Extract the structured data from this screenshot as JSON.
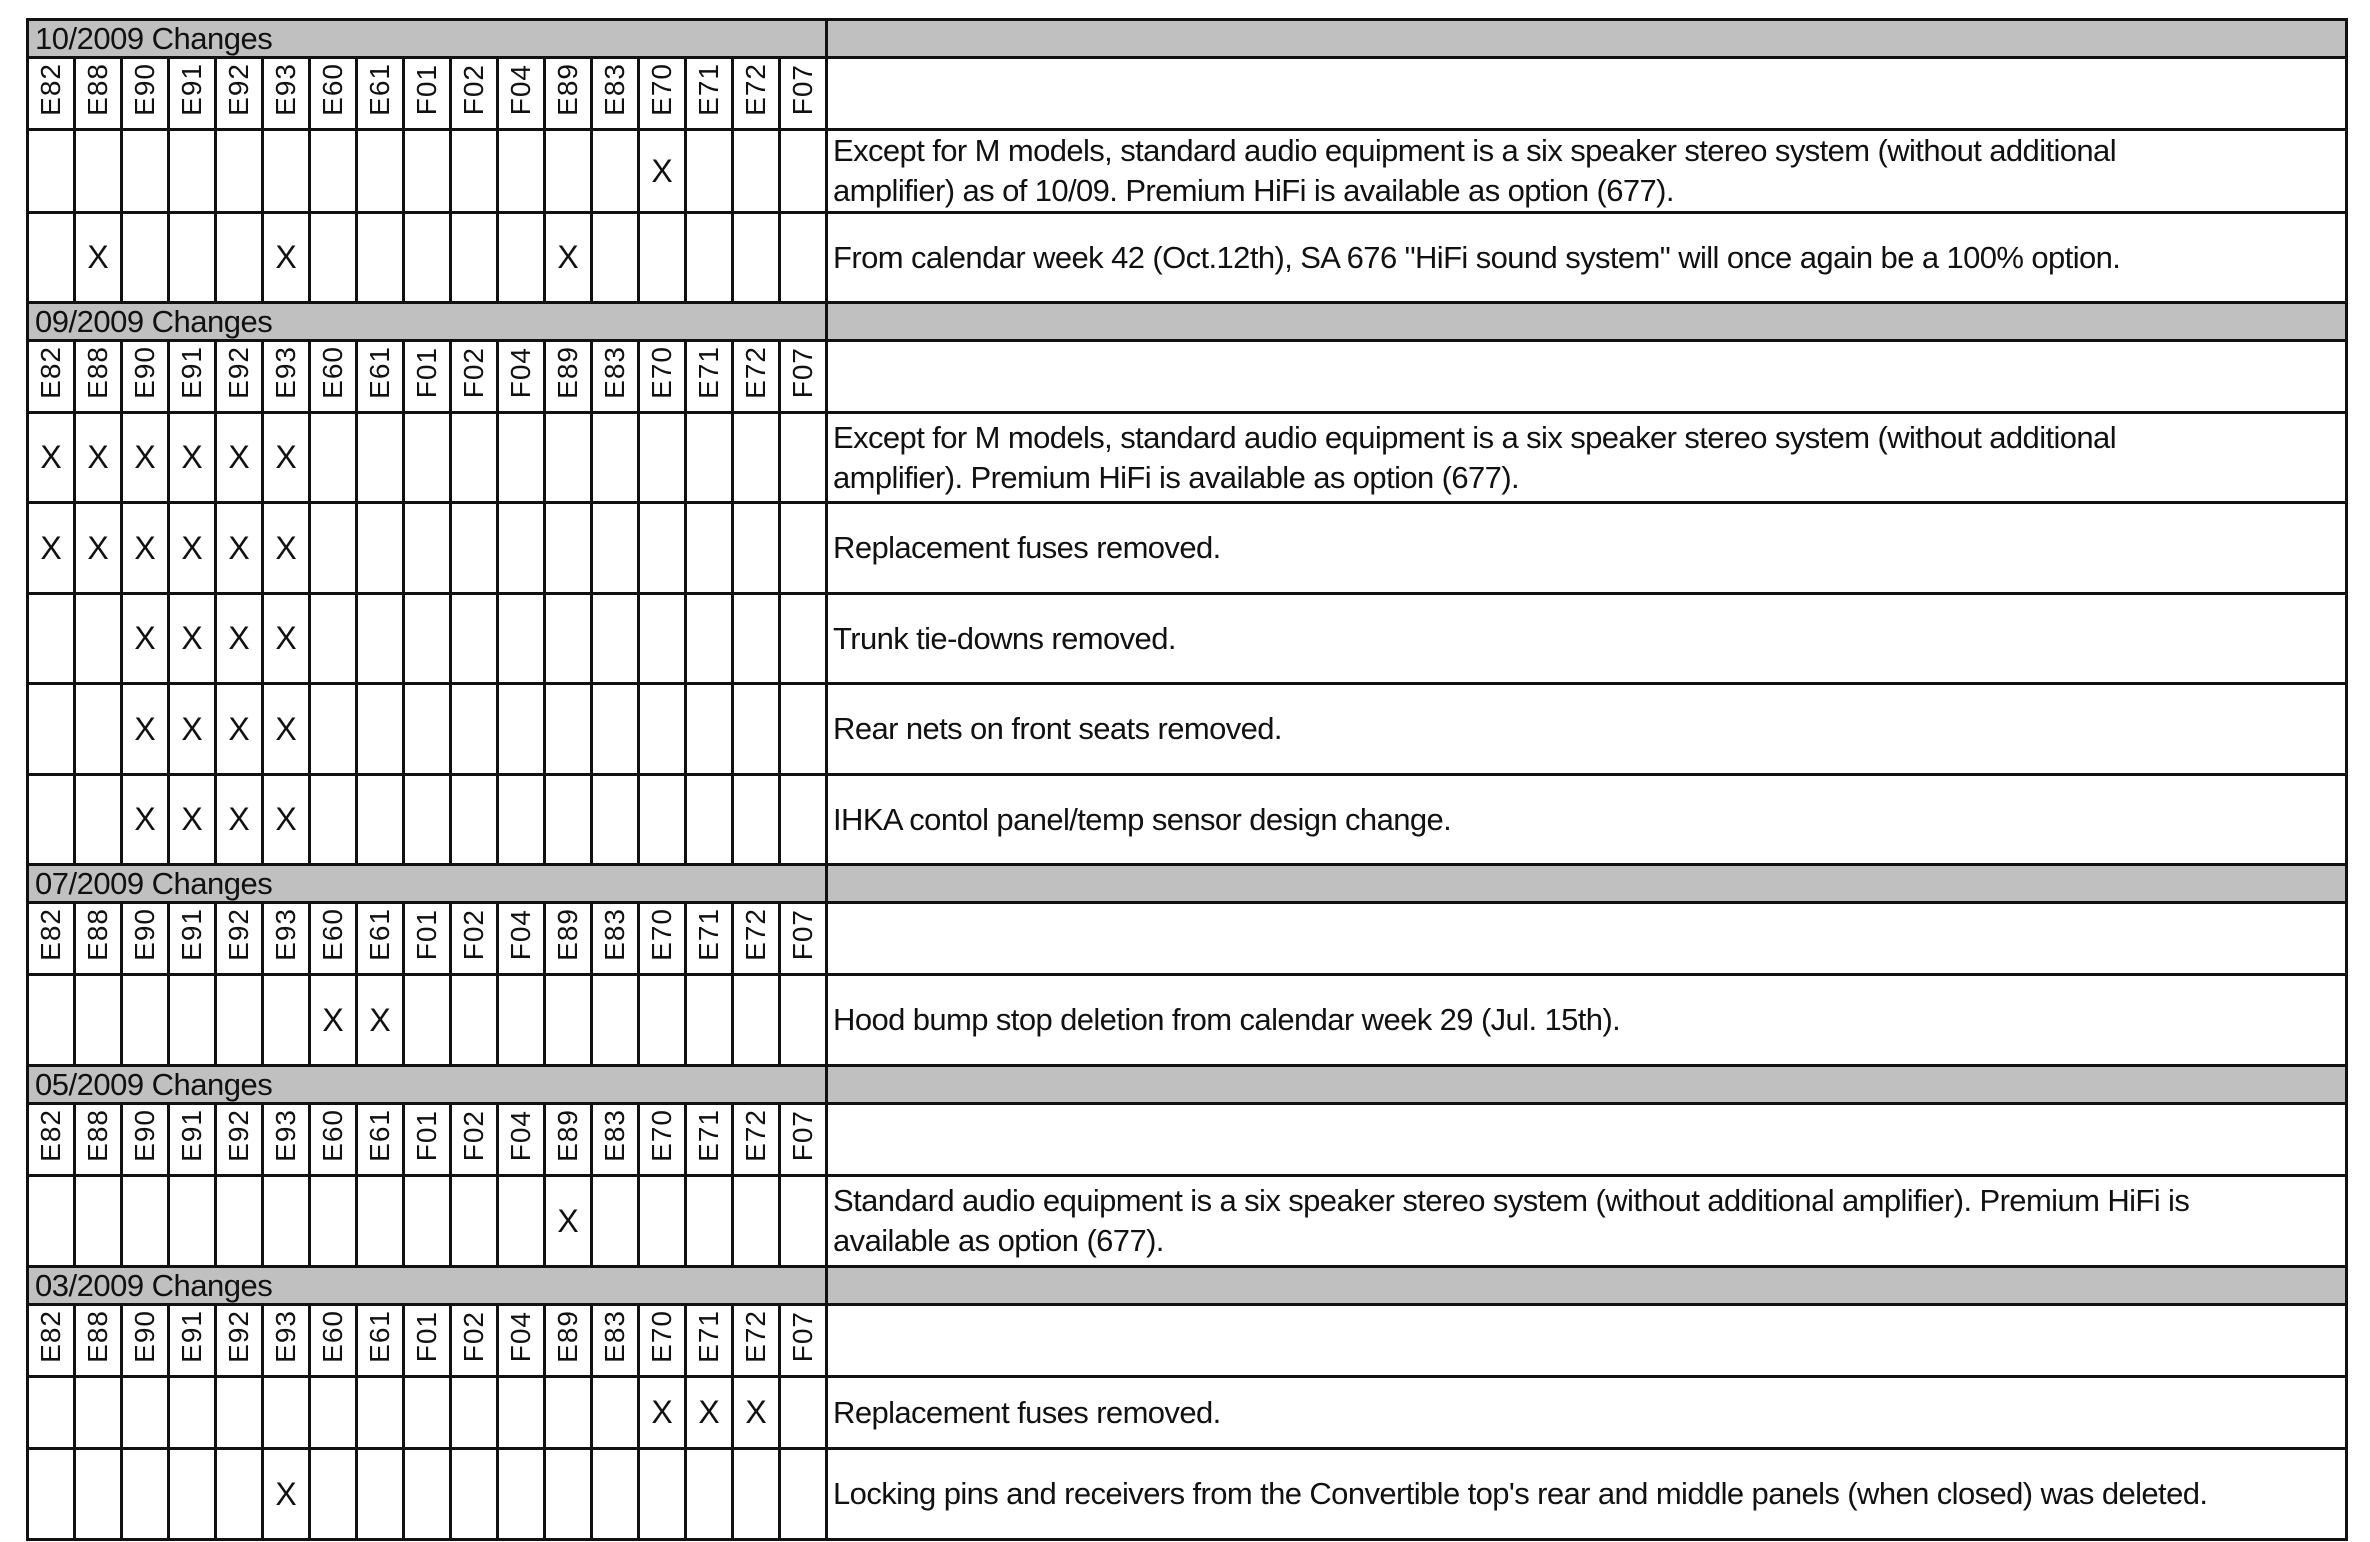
{
  "models": [
    "E82",
    "E88",
    "E90",
    "E91",
    "E92",
    "E93",
    "E60",
    "E61",
    "F01",
    "F02",
    "F04",
    "E89",
    "E83",
    "E70",
    "E71",
    "E72",
    "F07"
  ],
  "mark": "X",
  "sections": [
    {
      "title": "10/2009 Changes",
      "rows": [
        {
          "marks": [
            "E70"
          ],
          "text": "Except for M models, standard audio equipment is a six speaker stereo system (without additional\namplifier) as of 10/09.  Premium HiFi is available as option (677)."
        },
        {
          "marks": [
            "E88",
            "E93",
            "E89"
          ],
          "text": "From calendar week 42 (Oct.12th), SA 676 \"HiFi sound system\" will once again be a 100% option."
        }
      ]
    },
    {
      "title": "09/2009 Changes",
      "rows": [
        {
          "marks": [
            "E82",
            "E88",
            "E90",
            "E91",
            "E92",
            "E93"
          ],
          "text": "Except for M models, standard audio equipment is a six speaker stereo system (without additional\namplifier).  Premium HiFi is available as option (677)."
        },
        {
          "marks": [
            "E82",
            "E88",
            "E90",
            "E91",
            "E92",
            "E93"
          ],
          "text": "Replacement fuses removed."
        },
        {
          "marks": [
            "E90",
            "E91",
            "E92",
            "E93"
          ],
          "text": "Trunk tie-downs removed."
        },
        {
          "marks": [
            "E90",
            "E91",
            "E92",
            "E93"
          ],
          "text": "Rear nets on front seats removed."
        },
        {
          "marks": [
            "E90",
            "E91",
            "E92",
            "E93"
          ],
          "text": "IHKA contol panel/temp sensor design change."
        }
      ]
    },
    {
      "title": "07/2009 Changes",
      "rows": [
        {
          "marks": [
            "E60",
            "E61"
          ],
          "text": "Hood bump stop deletion from calendar week 29 (Jul. 15th)."
        }
      ]
    },
    {
      "title": "05/2009 Changes",
      "rows": [
        {
          "marks": [
            "E89"
          ],
          "text": "Standard audio equipment is a six speaker stereo system (without additional amplifier).  Premium HiFi is\navailable as option (677)."
        }
      ]
    },
    {
      "title": "03/2009 Changes",
      "rows": [
        {
          "marks": [
            "E70",
            "E71",
            "E72"
          ],
          "text": "Replacement fuses removed."
        },
        {
          "marks": [
            "E93"
          ],
          "text": "Locking pins and receivers from the Convertible top's rear and middle panels (when closed) was deleted."
        }
      ]
    }
  ]
}
